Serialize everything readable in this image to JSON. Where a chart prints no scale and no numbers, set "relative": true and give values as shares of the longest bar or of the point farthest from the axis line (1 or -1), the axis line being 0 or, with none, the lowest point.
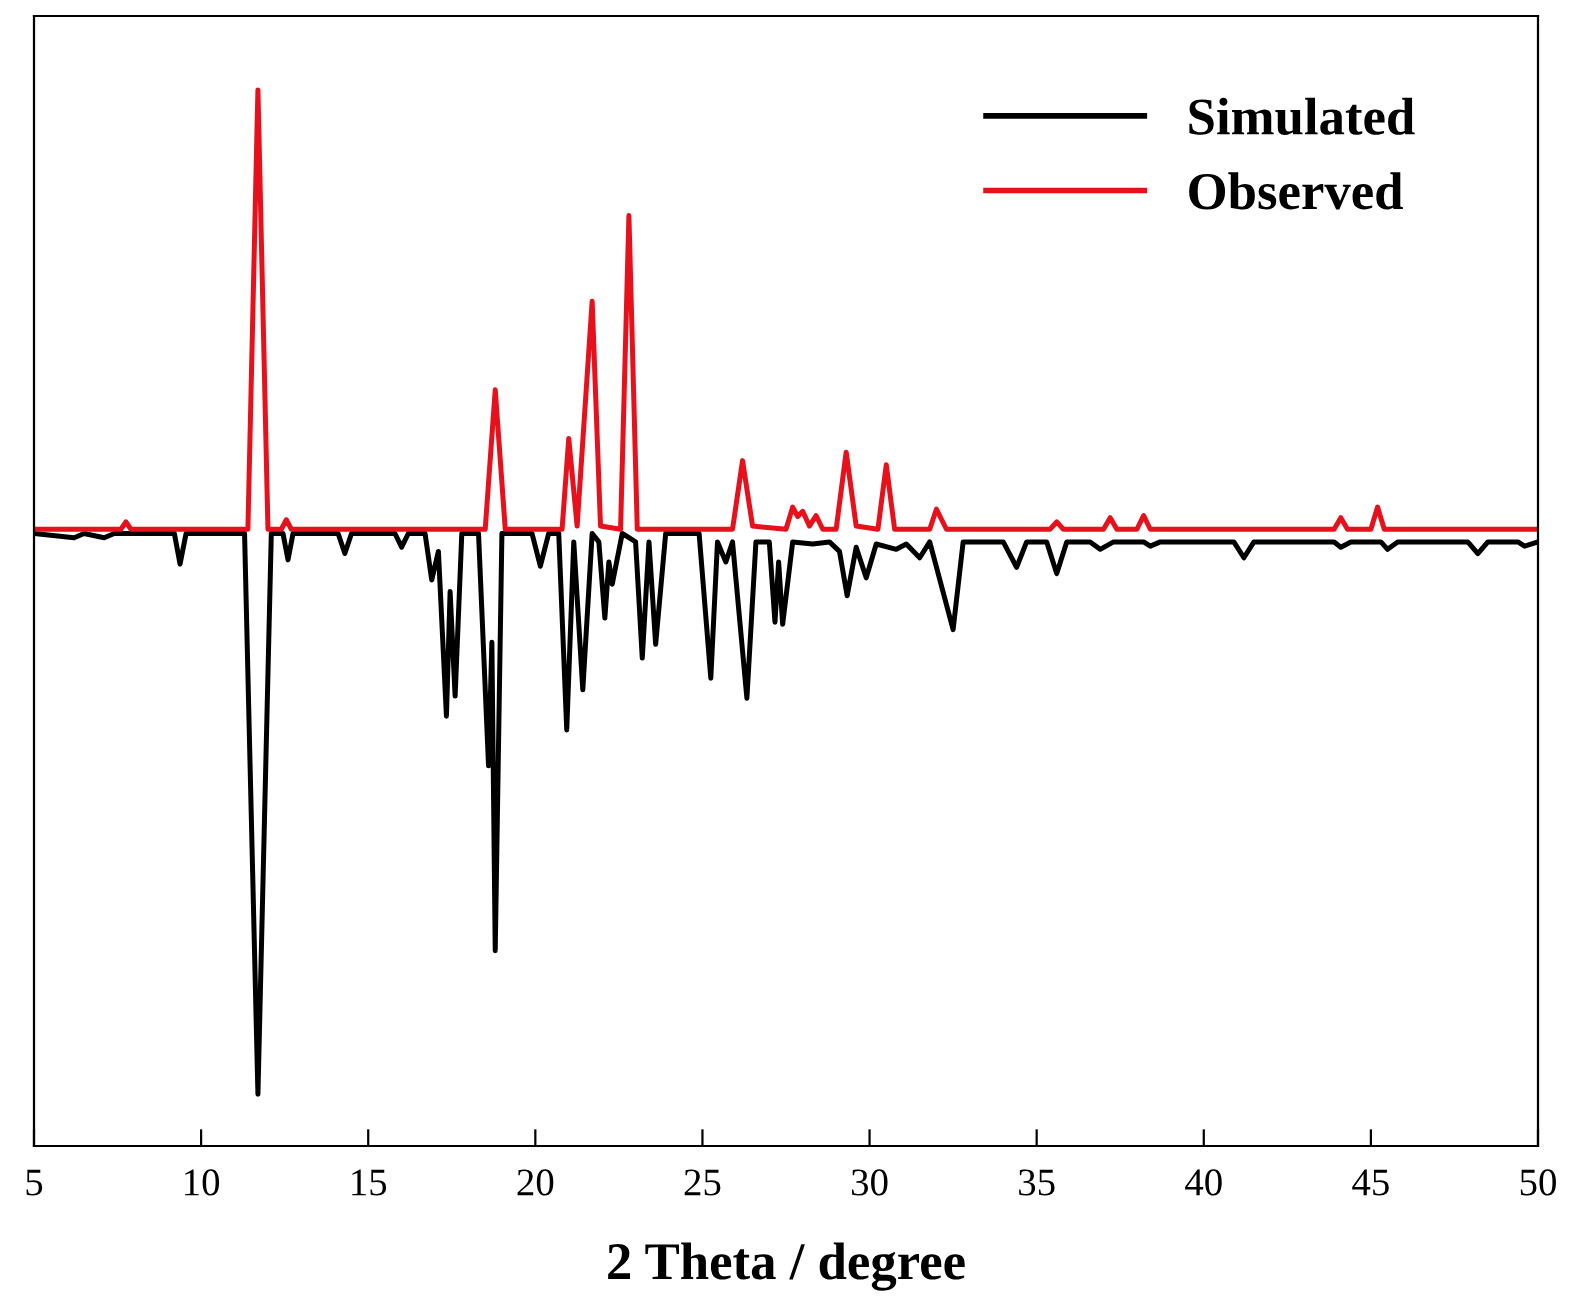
{
  "chart_data": {
    "type": "line",
    "relative": true,
    "xlabel": "2 Theta / degree",
    "xlim": [
      5,
      50
    ],
    "xticks": [
      5,
      10,
      15,
      20,
      25,
      30,
      35,
      40,
      45,
      50
    ],
    "tick_labels": "x",
    "grid": false,
    "legend": "top right",
    "series": [
      {
        "name": "Simulated",
        "color": "#000000",
        "x": [
          5.0,
          6.2,
          6.5,
          7.1,
          7.4,
          9.2,
          9.37,
          9.55,
          11.3,
          11.7,
          12.1,
          12.45,
          12.6,
          12.75,
          14.1,
          14.3,
          14.5,
          15.8,
          16.0,
          16.2,
          16.7,
          16.9,
          17.1,
          17.34,
          17.45,
          17.6,
          17.8,
          18.3,
          18.6,
          18.7,
          18.8,
          19.0,
          19.9,
          20.15,
          20.4,
          20.7,
          20.94,
          21.15,
          21.42,
          21.7,
          21.9,
          22.08,
          22.2,
          22.3,
          22.6,
          23.0,
          23.2,
          23.4,
          23.6,
          23.9,
          24.9,
          25.25,
          25.45,
          25.7,
          25.9,
          26.33,
          26.6,
          27.0,
          27.17,
          27.28,
          27.4,
          27.7,
          28.3,
          28.8,
          29.1,
          29.33,
          29.6,
          29.9,
          30.2,
          30.8,
          31.1,
          31.5,
          31.8,
          32.5,
          32.8,
          34.0,
          34.4,
          34.7,
          35.3,
          35.6,
          35.9,
          36.6,
          36.9,
          37.3,
          38.2,
          38.4,
          38.7,
          40.9,
          41.2,
          41.5,
          43.9,
          44.1,
          44.4,
          45.3,
          45.5,
          45.8,
          47.9,
          48.2,
          48.5,
          49.4,
          49.6,
          50.0
        ],
        "values": [
          0.58,
          0.576,
          0.58,
          0.576,
          0.58,
          0.58,
          0.551,
          0.58,
          0.58,
          0.049,
          0.58,
          0.58,
          0.555,
          0.58,
          0.58,
          0.561,
          0.58,
          0.58,
          0.567,
          0.58,
          0.58,
          0.536,
          0.563,
          0.407,
          0.525,
          0.426,
          0.58,
          0.58,
          0.36,
          0.477,
          0.185,
          0.58,
          0.58,
          0.549,
          0.58,
          0.58,
          0.394,
          0.572,
          0.432,
          0.58,
          0.572,
          0.5,
          0.553,
          0.532,
          0.58,
          0.572,
          0.462,
          0.572,
          0.475,
          0.58,
          0.58,
          0.443,
          0.572,
          0.553,
          0.572,
          0.424,
          0.572,
          0.572,
          0.496,
          0.553,
          0.494,
          0.572,
          0.57,
          0.572,
          0.563,
          0.521,
          0.567,
          0.538,
          0.57,
          0.565,
          0.57,
          0.557,
          0.572,
          0.489,
          0.572,
          0.572,
          0.548,
          0.572,
          0.572,
          0.542,
          0.572,
          0.572,
          0.565,
          0.572,
          0.572,
          0.568,
          0.572,
          0.572,
          0.557,
          0.572,
          0.572,
          0.567,
          0.572,
          0.572,
          0.565,
          0.572,
          0.572,
          0.561,
          0.572,
          0.572,
          0.568,
          0.572
        ]
      },
      {
        "name": "Observed",
        "color": "#e8101a",
        "x": [
          5.0,
          7.6,
          7.75,
          7.9,
          11.4,
          11.7,
          12.0,
          12.4,
          12.55,
          12.7,
          18.5,
          18.8,
          19.1,
          20.8,
          21.0,
          21.25,
          21.7,
          21.95,
          22.55,
          22.8,
          23.05,
          25.9,
          26.2,
          26.5,
          27.5,
          27.7,
          27.85,
          28.0,
          28.2,
          28.4,
          28.6,
          29.0,
          29.3,
          29.6,
          30.25,
          30.5,
          30.75,
          31.8,
          32.0,
          32.3,
          35.4,
          35.6,
          35.8,
          37.0,
          37.2,
          37.4,
          38.0,
          38.2,
          38.4,
          43.9,
          44.1,
          44.3,
          45.0,
          45.2,
          45.4,
          50.0
        ],
        "values": [
          0.584,
          0.584,
          0.591,
          0.584,
          0.584,
          1.0,
          0.584,
          0.584,
          0.593,
          0.584,
          0.584,
          0.716,
          0.584,
          0.584,
          0.67,
          0.587,
          0.8,
          0.587,
          0.584,
          0.881,
          0.584,
          0.584,
          0.649,
          0.587,
          0.584,
          0.605,
          0.596,
          0.601,
          0.587,
          0.597,
          0.584,
          0.584,
          0.657,
          0.587,
          0.584,
          0.645,
          0.584,
          0.584,
          0.603,
          0.584,
          0.584,
          0.591,
          0.584,
          0.584,
          0.595,
          0.584,
          0.584,
          0.597,
          0.584,
          0.584,
          0.595,
          0.584,
          0.584,
          0.605,
          0.584,
          0.584
        ]
      }
    ]
  }
}
